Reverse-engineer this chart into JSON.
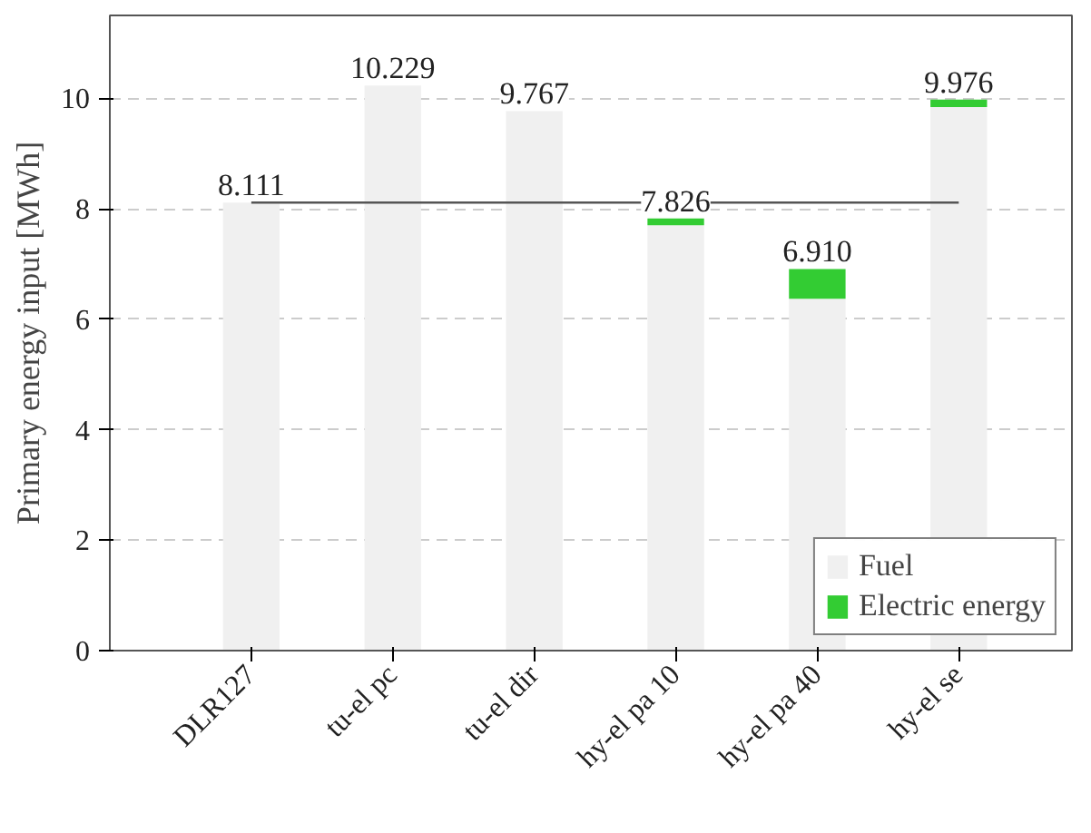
{
  "chart_data": {
    "type": "bar",
    "stacked": true,
    "ylabel": "Primary energy input [MWh]",
    "categories": [
      "DLR127",
      "tu-el pc",
      "tu-el dir",
      "hy-el pa 10",
      "hy-el pa 40",
      "hy-el se"
    ],
    "series": [
      {
        "name": "Fuel",
        "color": "#f0f0f0",
        "values": [
          8.111,
          10.229,
          9.767,
          7.7,
          6.37,
          9.84
        ]
      },
      {
        "name": "Electric energy",
        "color": "#33cc33",
        "values": [
          0,
          0,
          0,
          0.126,
          0.54,
          0.136
        ]
      }
    ],
    "totals": [
      "8.111",
      "10.229",
      "9.767",
      "7.826",
      "6.910",
      "9.976"
    ],
    "ref_lines": [
      {
        "axis": "y",
        "value": 8.111,
        "color": "#555555"
      }
    ],
    "ylim": [
      0,
      11.5
    ],
    "yticks": [
      0,
      2,
      4,
      6,
      8,
      10
    ],
    "grid": "y",
    "legend": "bottom right"
  }
}
